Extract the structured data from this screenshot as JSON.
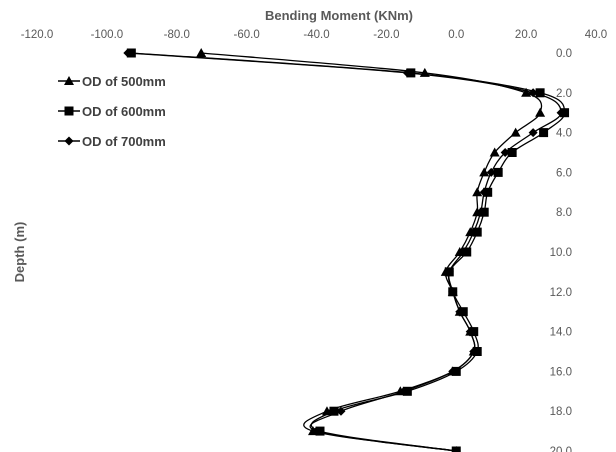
{
  "chart_data": {
    "type": "line",
    "title": "",
    "xlabel": "Bending Moment (KNm)",
    "ylabel": "Depth (m)",
    "xlim": [
      -120,
      40
    ],
    "ylim": [
      0,
      20
    ],
    "y_reversed": true,
    "x_axis_position": "top",
    "y_axis_position": "right",
    "grid": false,
    "legend_position": "top-left",
    "x_ticks": [
      "-120.0",
      "-100.0",
      "-80.0",
      "-60.0",
      "-40.0",
      "-20.0",
      "0.0",
      "20.0",
      "40.0"
    ],
    "y_ticks": [
      "0.0",
      "2.0",
      "4.0",
      "6.0",
      "8.0",
      "10.0",
      "12.0",
      "14.0",
      "16.0",
      "18.0",
      "20.0"
    ],
    "series": [
      {
        "name": "OD of 500mm",
        "marker": "triangle",
        "color": "#000000",
        "points": [
          {
            "depth": 0,
            "moment": -73
          },
          {
            "depth": 1,
            "moment": -9
          },
          {
            "depth": 2,
            "moment": 20
          },
          {
            "depth": 3,
            "moment": 24
          },
          {
            "depth": 4,
            "moment": 17
          },
          {
            "depth": 5,
            "moment": 11
          },
          {
            "depth": 6,
            "moment": 8
          },
          {
            "depth": 7,
            "moment": 6
          },
          {
            "depth": 8,
            "moment": 6
          },
          {
            "depth": 9,
            "moment": 4
          },
          {
            "depth": 10,
            "moment": 1
          },
          {
            "depth": 11,
            "moment": -3
          },
          {
            "depth": 12,
            "moment": -1
          },
          {
            "depth": 13,
            "moment": 1
          },
          {
            "depth": 14,
            "moment": 4
          },
          {
            "depth": 15,
            "moment": 5
          },
          {
            "depth": 16,
            "moment": -1
          },
          {
            "depth": 17,
            "moment": -16
          },
          {
            "depth": 18,
            "moment": -37
          },
          {
            "depth": 19,
            "moment": -41
          },
          {
            "depth": 20,
            "moment": 0
          }
        ]
      },
      {
        "name": "OD of 600mm",
        "marker": "square",
        "color": "#000000",
        "points": [
          {
            "depth": 0,
            "moment": -93
          },
          {
            "depth": 1,
            "moment": -13
          },
          {
            "depth": 2,
            "moment": 24
          },
          {
            "depth": 3,
            "moment": 31
          },
          {
            "depth": 4,
            "moment": 25
          },
          {
            "depth": 5,
            "moment": 16
          },
          {
            "depth": 6,
            "moment": 12
          },
          {
            "depth": 7,
            "moment": 9
          },
          {
            "depth": 8,
            "moment": 8
          },
          {
            "depth": 9,
            "moment": 6
          },
          {
            "depth": 10,
            "moment": 3
          },
          {
            "depth": 11,
            "moment": -2
          },
          {
            "depth": 12,
            "moment": -1
          },
          {
            "depth": 13,
            "moment": 2
          },
          {
            "depth": 14,
            "moment": 5
          },
          {
            "depth": 15,
            "moment": 6
          },
          {
            "depth": 16,
            "moment": 0
          },
          {
            "depth": 17,
            "moment": -14
          },
          {
            "depth": 18,
            "moment": -35
          },
          {
            "depth": 19,
            "moment": -39
          },
          {
            "depth": 20,
            "moment": 0
          }
        ]
      },
      {
        "name": "OD of 700mm",
        "marker": "diamond",
        "color": "#000000",
        "points": [
          {
            "depth": 0,
            "moment": -94
          },
          {
            "depth": 1,
            "moment": -14
          },
          {
            "depth": 2,
            "moment": 22
          },
          {
            "depth": 3,
            "moment": 30
          },
          {
            "depth": 4,
            "moment": 22
          },
          {
            "depth": 5,
            "moment": 14
          },
          {
            "depth": 6,
            "moment": 10
          },
          {
            "depth": 7,
            "moment": 8
          },
          {
            "depth": 8,
            "moment": 7
          },
          {
            "depth": 9,
            "moment": 5
          },
          {
            "depth": 10,
            "moment": 2
          },
          {
            "depth": 11,
            "moment": -2
          },
          {
            "depth": 12,
            "moment": -1
          },
          {
            "depth": 13,
            "moment": 1
          },
          {
            "depth": 14,
            "moment": 4
          },
          {
            "depth": 15,
            "moment": 5
          },
          {
            "depth": 16,
            "moment": -1
          },
          {
            "depth": 17,
            "moment": -15
          },
          {
            "depth": 18,
            "moment": -33
          },
          {
            "depth": 19,
            "moment": -40
          },
          {
            "depth": 20,
            "moment": 0
          }
        ]
      }
    ]
  }
}
